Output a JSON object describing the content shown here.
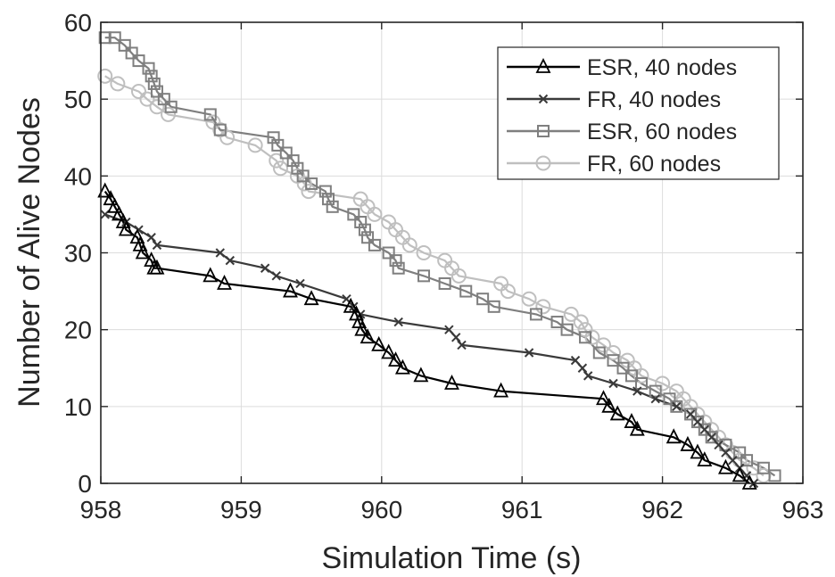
{
  "chart_data": {
    "type": "line",
    "title": "",
    "xlabel": "Simulation Time (s)",
    "ylabel": "Number of Alive Nodes",
    "xlim": [
      958,
      963
    ],
    "ylim": [
      0,
      60
    ],
    "xticks": [
      "958",
      "959",
      "960",
      "961",
      "962",
      "963"
    ],
    "yticks": [
      "0",
      "10",
      "20",
      "30",
      "40",
      "50",
      "60"
    ],
    "grid": true,
    "legend_position": "top-right",
    "series": [
      {
        "name": "ESR, 40 nodes",
        "color": "#000000",
        "marker": "triangle",
        "points": [
          [
            958.03,
            38
          ],
          [
            958.07,
            37
          ],
          [
            958.1,
            36
          ],
          [
            958.13,
            35
          ],
          [
            958.16,
            34
          ],
          [
            958.18,
            33
          ],
          [
            958.26,
            32
          ],
          [
            958.28,
            31
          ],
          [
            958.3,
            30
          ],
          [
            958.36,
            29
          ],
          [
            958.38,
            28
          ],
          [
            958.4,
            28
          ],
          [
            958.78,
            27
          ],
          [
            958.88,
            26
          ],
          [
            959.35,
            25
          ],
          [
            959.5,
            24
          ],
          [
            959.78,
            23
          ],
          [
            959.82,
            22
          ],
          [
            959.84,
            21
          ],
          [
            959.86,
            20
          ],
          [
            959.9,
            19
          ],
          [
            959.98,
            18
          ],
          [
            960.05,
            17
          ],
          [
            960.1,
            16
          ],
          [
            960.15,
            15
          ],
          [
            960.28,
            14
          ],
          [
            960.5,
            13
          ],
          [
            960.85,
            12
          ],
          [
            961.58,
            11
          ],
          [
            961.62,
            10
          ],
          [
            961.68,
            9
          ],
          [
            961.78,
            8
          ],
          [
            961.82,
            7
          ],
          [
            962.08,
            6
          ],
          [
            962.18,
            5
          ],
          [
            962.25,
            4
          ],
          [
            962.3,
            3
          ],
          [
            962.45,
            2
          ],
          [
            962.55,
            1
          ],
          [
            962.62,
            0
          ]
        ]
      },
      {
        "name": "FR, 40 nodes",
        "color": "#3a3a3a",
        "marker": "x",
        "points": [
          [
            958.03,
            35
          ],
          [
            958.18,
            34
          ],
          [
            958.27,
            33
          ],
          [
            958.36,
            32
          ],
          [
            958.4,
            31
          ],
          [
            958.85,
            30
          ],
          [
            958.92,
            29
          ],
          [
            959.17,
            28
          ],
          [
            959.25,
            27
          ],
          [
            959.42,
            26
          ],
          [
            959.75,
            24
          ],
          [
            959.8,
            23
          ],
          [
            959.85,
            22
          ],
          [
            960.12,
            21
          ],
          [
            960.48,
            20
          ],
          [
            960.53,
            19
          ],
          [
            960.57,
            18
          ],
          [
            961.05,
            17
          ],
          [
            961.38,
            16
          ],
          [
            961.43,
            15
          ],
          [
            961.47,
            14
          ],
          [
            961.65,
            13
          ],
          [
            961.82,
            12
          ],
          [
            961.95,
            11
          ],
          [
            962.1,
            10
          ],
          [
            962.2,
            9
          ],
          [
            962.25,
            8
          ],
          [
            962.3,
            7
          ],
          [
            962.35,
            6
          ],
          [
            962.4,
            5
          ],
          [
            962.45,
            4
          ],
          [
            962.5,
            3
          ],
          [
            962.55,
            2
          ],
          [
            962.6,
            1
          ],
          [
            962.65,
            0
          ]
        ]
      },
      {
        "name": "ESR, 60 nodes",
        "color": "#7f7f7f",
        "marker": "square",
        "points": [
          [
            958.03,
            58
          ],
          [
            958.1,
            58
          ],
          [
            958.17,
            57
          ],
          [
            958.22,
            56
          ],
          [
            958.27,
            55
          ],
          [
            958.34,
            54
          ],
          [
            958.36,
            53
          ],
          [
            958.38,
            52
          ],
          [
            958.4,
            51
          ],
          [
            958.45,
            50
          ],
          [
            958.5,
            49
          ],
          [
            958.78,
            48
          ],
          [
            958.85,
            46
          ],
          [
            959.23,
            45
          ],
          [
            959.26,
            44
          ],
          [
            959.32,
            43
          ],
          [
            959.37,
            42
          ],
          [
            959.4,
            41
          ],
          [
            959.44,
            40
          ],
          [
            959.5,
            39
          ],
          [
            959.6,
            38
          ],
          [
            959.62,
            37
          ],
          [
            959.65,
            36
          ],
          [
            959.8,
            35
          ],
          [
            959.85,
            34
          ],
          [
            959.88,
            33
          ],
          [
            959.9,
            32
          ],
          [
            959.95,
            31
          ],
          [
            960.05,
            30
          ],
          [
            960.1,
            29
          ],
          [
            960.12,
            28
          ],
          [
            960.3,
            27
          ],
          [
            960.45,
            26
          ],
          [
            960.6,
            25
          ],
          [
            960.72,
            24
          ],
          [
            960.8,
            23
          ],
          [
            961.1,
            22
          ],
          [
            961.25,
            21
          ],
          [
            961.32,
            20
          ],
          [
            961.45,
            19
          ],
          [
            961.55,
            17
          ],
          [
            961.65,
            16
          ],
          [
            961.72,
            15
          ],
          [
            961.78,
            14
          ],
          [
            961.85,
            13
          ],
          [
            961.95,
            12
          ],
          [
            962.05,
            11
          ],
          [
            962.1,
            10
          ],
          [
            962.2,
            9
          ],
          [
            962.25,
            8
          ],
          [
            962.3,
            7
          ],
          [
            962.35,
            6
          ],
          [
            962.45,
            5
          ],
          [
            962.55,
            4
          ],
          [
            962.6,
            3
          ],
          [
            962.72,
            2
          ],
          [
            962.8,
            1
          ]
        ]
      },
      {
        "name": "FR, 60 nodes",
        "color": "#bfbfbf",
        "marker": "circle",
        "points": [
          [
            958.03,
            53
          ],
          [
            958.12,
            52
          ],
          [
            958.27,
            51
          ],
          [
            958.33,
            50
          ],
          [
            958.4,
            49
          ],
          [
            958.48,
            48
          ],
          [
            958.8,
            47
          ],
          [
            958.85,
            46
          ],
          [
            958.9,
            45
          ],
          [
            959.1,
            44
          ],
          [
            959.25,
            42
          ],
          [
            959.28,
            41
          ],
          [
            959.4,
            40
          ],
          [
            959.45,
            39
          ],
          [
            959.48,
            38
          ],
          [
            959.85,
            37
          ],
          [
            959.9,
            36
          ],
          [
            959.95,
            35
          ],
          [
            960.05,
            34
          ],
          [
            960.1,
            33
          ],
          [
            960.15,
            32
          ],
          [
            960.2,
            31
          ],
          [
            960.3,
            30
          ],
          [
            960.45,
            29
          ],
          [
            960.5,
            28
          ],
          [
            960.55,
            27
          ],
          [
            960.85,
            26
          ],
          [
            960.9,
            25
          ],
          [
            961.05,
            24
          ],
          [
            961.15,
            23
          ],
          [
            961.35,
            22
          ],
          [
            961.42,
            21
          ],
          [
            961.45,
            20
          ],
          [
            961.5,
            19
          ],
          [
            961.58,
            18
          ],
          [
            961.65,
            17
          ],
          [
            961.75,
            16
          ],
          [
            961.8,
            15
          ],
          [
            961.85,
            14
          ],
          [
            962.0,
            13
          ],
          [
            962.1,
            12
          ],
          [
            962.15,
            11
          ],
          [
            962.2,
            10
          ],
          [
            962.25,
            9
          ],
          [
            962.3,
            8
          ],
          [
            962.35,
            7
          ],
          [
            962.4,
            6
          ],
          [
            962.45,
            5
          ],
          [
            962.5,
            4
          ],
          [
            962.55,
            3
          ],
          [
            962.65,
            2
          ],
          [
            962.72,
            1
          ]
        ]
      }
    ]
  }
}
